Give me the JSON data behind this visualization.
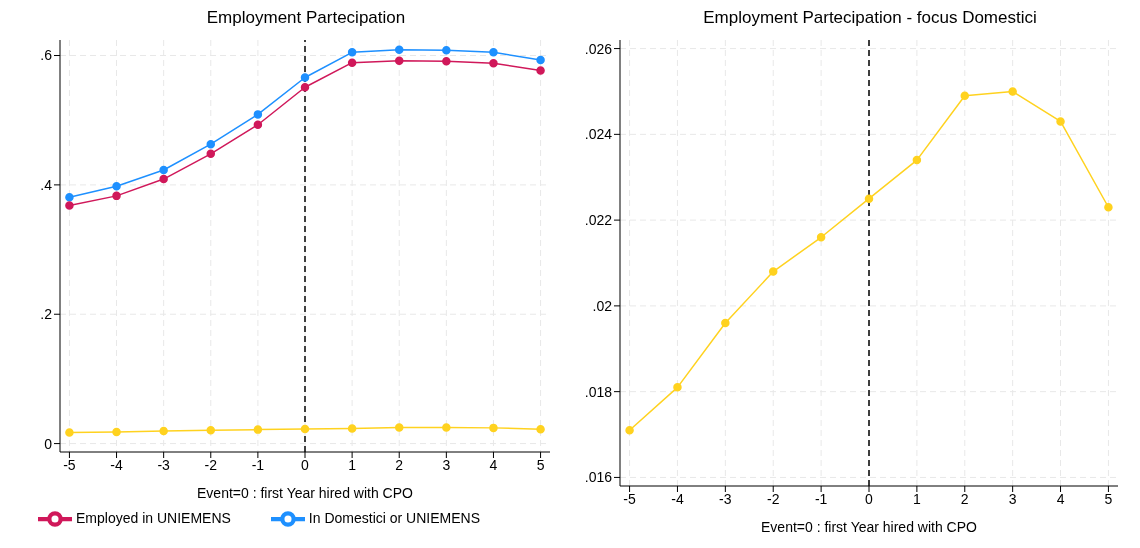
{
  "chart_data": [
    {
      "type": "line",
      "title": "Employment Partecipation",
      "xlabel": "Event=0 : first Year hired with CPO",
      "x": [
        -5,
        -4,
        -3,
        -2,
        -1,
        0,
        1,
        2,
        3,
        4,
        5
      ],
      "xlim": [
        -5.2,
        5.2
      ],
      "xticks": [
        -5,
        -4,
        -3,
        -2,
        -1,
        0,
        1,
        2,
        3,
        4,
        5
      ],
      "ylim": [
        -0.013,
        0.624
      ],
      "yticks": [
        0,
        {
          "value": 0.2,
          "label": ".2"
        },
        {
          "value": 0.4,
          "label": ".4"
        },
        {
          "value": 0.6,
          "label": ".6"
        }
      ],
      "grid": true,
      "marker": "circle",
      "line_style": "solid",
      "legend": "bottom",
      "ref_lines": [
        {
          "axis": "x",
          "value": 0,
          "color": "#000000",
          "line_style": "dashed"
        }
      ],
      "series": [
        {
          "name": "In Domestici or UNIEMENS",
          "color": "#1e90ff",
          "values": [
            0.381,
            0.398,
            0.423,
            0.463,
            0.509,
            0.566,
            0.605,
            0.609,
            0.608,
            0.605,
            0.593
          ]
        },
        {
          "name": "Employed in UNIEMENS",
          "color": "#d0185a",
          "values": [
            0.368,
            0.383,
            0.409,
            0.448,
            0.493,
            0.551,
            0.589,
            0.592,
            0.591,
            0.588,
            0.577
          ]
        },
        {
          "color": "#ffd21f",
          "values": [
            0.0171,
            0.0181,
            0.0196,
            0.0208,
            0.0216,
            0.0225,
            0.0234,
            0.0249,
            0.025,
            0.0243,
            0.0223
          ]
        }
      ]
    },
    {
      "type": "line",
      "title": "Employment Partecipation - focus Domestici",
      "xlabel": "Event=0 : first Year hired with CPO",
      "x": [
        -5,
        -4,
        -3,
        -2,
        -1,
        0,
        1,
        2,
        3,
        4,
        5
      ],
      "xlim": [
        -5.2,
        5.2
      ],
      "xticks": [
        -5,
        -4,
        -3,
        -2,
        -1,
        0,
        1,
        2,
        3,
        4,
        5
      ],
      "ylim": [
        0.0158,
        0.0262
      ],
      "yticks": [
        {
          "value": 0.016,
          "label": ".016"
        },
        {
          "value": 0.018,
          "label": ".018"
        },
        {
          "value": 0.02,
          "label": ".02"
        },
        {
          "value": 0.022,
          "label": ".022"
        },
        {
          "value": 0.024,
          "label": ".024"
        },
        {
          "value": 0.026,
          "label": ".026"
        }
      ],
      "grid": true,
      "marker": "circle",
      "line_style": "solid",
      "ref_lines": [
        {
          "axis": "x",
          "value": 0,
          "color": "#000000",
          "line_style": "dashed"
        }
      ],
      "series": [
        {
          "color": "#ffd21f",
          "values": [
            0.0171,
            0.0181,
            0.0196,
            0.0208,
            0.0216,
            0.0225,
            0.0234,
            0.0249,
            0.025,
            0.0243,
            0.0223
          ]
        }
      ]
    }
  ]
}
